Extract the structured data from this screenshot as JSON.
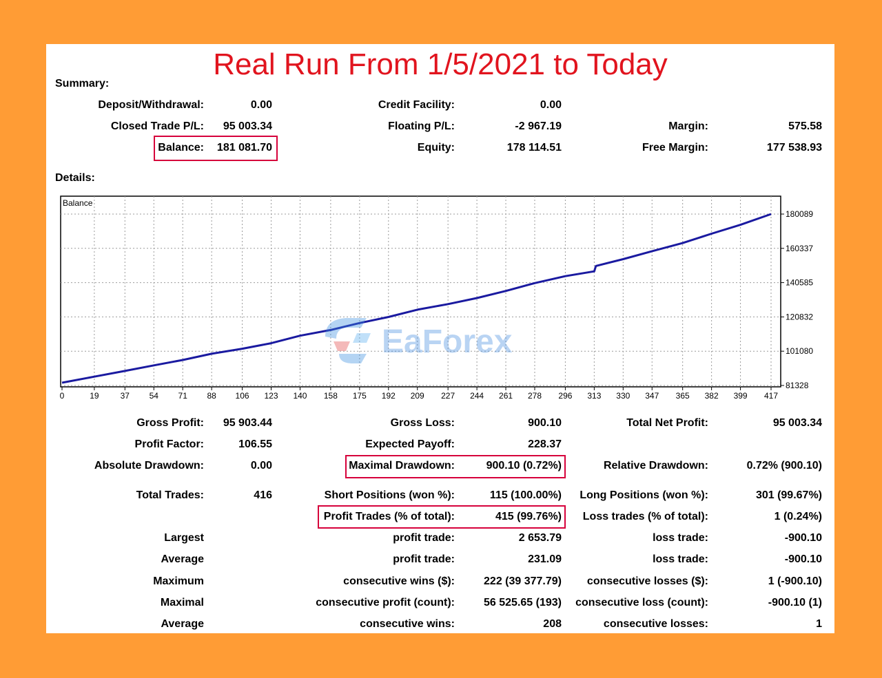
{
  "title": "Real Run From 1/5/2021 to Today",
  "summary": {
    "heading": "Summary:",
    "deposit_label": "Deposit/Withdrawal:",
    "deposit_value": "0.00",
    "credit_label": "Credit Facility:",
    "credit_value": "0.00",
    "closed_pl_label": "Closed Trade P/L:",
    "closed_pl_value": "95 003.34",
    "floating_pl_label": "Floating P/L:",
    "floating_pl_value": "-2 967.19",
    "margin_label": "Margin:",
    "margin_value": "575.58",
    "balance_label": "Balance:",
    "balance_value": "181 081.70",
    "equity_label": "Equity:",
    "equity_value": "178 114.51",
    "free_margin_label": "Free Margin:",
    "free_margin_value": "177 538.93"
  },
  "details": {
    "heading": "Details:"
  },
  "chart_data": {
    "type": "line",
    "title": "Balance",
    "x_ticks": [
      "0",
      "19",
      "37",
      "54",
      "71",
      "88",
      "106",
      "123",
      "140",
      "158",
      "175",
      "192",
      "209",
      "227",
      "244",
      "261",
      "278",
      "296",
      "313",
      "330",
      "347",
      "365",
      "382",
      "399",
      "417"
    ],
    "y_ticks": [
      "180089",
      "160337",
      "140585",
      "120832",
      "101080",
      "81328"
    ],
    "xlim": [
      0,
      417
    ],
    "ylim": [
      81328,
      180089
    ],
    "grid": true,
    "line_color": "#1A1AA0",
    "series": [
      {
        "x": [
          0,
          19,
          37,
          54,
          71,
          88,
          106,
          123,
          140,
          158,
          175,
          192,
          209,
          227,
          244,
          261,
          278,
          296,
          313,
          314,
          330,
          347,
          365,
          382,
          399,
          417
        ],
        "y": [
          82900,
          86400,
          89700,
          92900,
          96000,
          99600,
          102500,
          105700,
          110000,
          113300,
          117300,
          120800,
          125000,
          128200,
          131700,
          135800,
          140300,
          144300,
          147100,
          150200,
          154100,
          158700,
          163400,
          168800,
          173900,
          180089
        ]
      }
    ]
  },
  "watermark": {
    "text": "EaForex"
  },
  "stats": {
    "gross_profit_label": "Gross Profit:",
    "gross_profit_value": "95 903.44",
    "gross_loss_label": "Gross Loss:",
    "gross_loss_value": "900.10",
    "total_net_label": "Total Net Profit:",
    "total_net_value": "95 003.34",
    "profit_factor_label": "Profit Factor:",
    "profit_factor_value": "106.55",
    "expected_payoff_label": "Expected Payoff:",
    "expected_payoff_value": "228.37",
    "abs_dd_label": "Absolute Drawdown:",
    "abs_dd_value": "0.00",
    "max_dd_label": "Maximal Drawdown:",
    "max_dd_value": "900.10 (0.72%)",
    "rel_dd_label": "Relative Drawdown:",
    "rel_dd_value": "0.72% (900.10)",
    "total_trades_label": "Total Trades:",
    "total_trades_value": "416",
    "short_pos_label": "Short Positions (won %):",
    "short_pos_value": "115 (100.00%)",
    "long_pos_label": "Long Positions (won %):",
    "long_pos_value": "301 (99.67%)",
    "profit_trades_label": "Profit Trades (% of total):",
    "profit_trades_value": "415 (99.76%)",
    "loss_trades_label": "Loss trades (% of total):",
    "loss_trades_value": "1 (0.24%)",
    "largest_label": "Largest",
    "largest_profit_label": "profit trade:",
    "largest_profit_value": "2 653.79",
    "largest_loss_label": "loss trade:",
    "largest_loss_value": "-900.10",
    "average_label": "Average",
    "average_profit_label": "profit trade:",
    "average_profit_value": "231.09",
    "average_loss_label": "loss trade:",
    "average_loss_value": "-900.10",
    "maximum_label": "Maximum",
    "max_cons_wins_label": "consecutive wins ($):",
    "max_cons_wins_value": "222 (39 377.79)",
    "max_cons_losses_label": "consecutive losses ($):",
    "max_cons_losses_value": "1 (-900.10)",
    "maximal_label": "Maximal",
    "maximal_cons_profit_label": "consecutive profit (count):",
    "maximal_cons_profit_value": "56 525.65 (193)",
    "maximal_cons_loss_label": "consecutive loss (count):",
    "maximal_cons_loss_value": "-900.10 (1)",
    "average2_label": "Average",
    "avg_cons_wins_label": "consecutive wins:",
    "avg_cons_wins_value": "208",
    "avg_cons_losses_label": "consecutive losses:",
    "avg_cons_losses_value": "1"
  }
}
